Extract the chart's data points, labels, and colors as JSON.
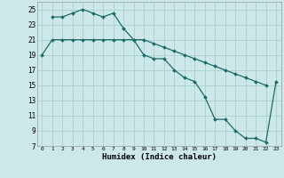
{
  "xlabel": "Humidex (Indice chaleur)",
  "bg_color": "#cce8e8",
  "grid_color": "#aacfcf",
  "line_color": "#1a6b6b",
  "xlim": [
    -0.5,
    23.5
  ],
  "ylim": [
    7,
    26
  ],
  "yticks": [
    7,
    9,
    11,
    13,
    15,
    17,
    19,
    21,
    23,
    25
  ],
  "xticks": [
    0,
    1,
    2,
    3,
    4,
    5,
    6,
    7,
    8,
    9,
    10,
    11,
    12,
    13,
    14,
    15,
    16,
    17,
    18,
    19,
    20,
    21,
    22,
    23
  ],
  "series1_x": [
    0,
    1,
    2,
    3,
    4,
    5,
    6,
    7,
    8,
    9,
    10,
    11,
    12,
    13,
    14,
    15,
    16,
    17,
    18,
    19,
    20,
    21,
    22
  ],
  "series1_y": [
    19,
    21,
    21,
    21,
    21,
    21,
    21,
    21,
    21,
    21,
    21,
    20.5,
    20,
    19.5,
    19,
    18.5,
    18,
    17.5,
    17,
    16.5,
    16,
    15.5,
    15
  ],
  "series2_x": [
    1,
    2,
    3,
    4,
    5,
    6,
    7,
    8,
    9,
    10,
    11,
    12,
    13,
    14,
    15,
    16,
    17,
    18,
    19,
    20,
    21,
    22,
    23
  ],
  "series2_y": [
    24,
    24,
    24.5,
    25,
    24.5,
    24,
    24.5,
    22.5,
    21,
    19,
    18.5,
    18.5,
    17,
    16,
    15.5,
    13.5,
    10.5,
    10.5,
    9,
    8,
    8,
    7.5,
    15.5
  ]
}
